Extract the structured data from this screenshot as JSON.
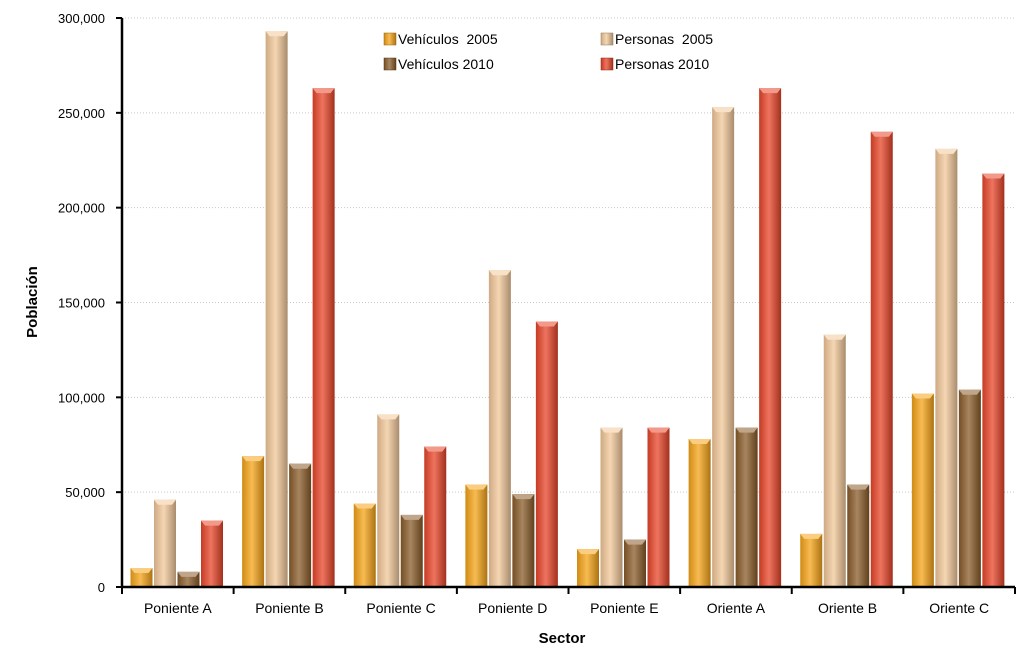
{
  "chart_data": {
    "type": "bar",
    "xlabel": "Sector",
    "ylabel": "Población",
    "ylim": [
      0,
      300000
    ],
    "yticks": [
      0,
      50000,
      100000,
      150000,
      200000,
      250000,
      300000
    ],
    "ytick_labels": [
      "0",
      "50,000",
      "100,000",
      "150,000",
      "200,000",
      "250,000",
      "300,000"
    ],
    "grid": true,
    "legend_position": "top-center",
    "categories": [
      "Poniente A",
      "Poniente B",
      "Poniente C",
      "Poniente D",
      "Poniente E",
      "Oriente A",
      "Oriente B",
      "Oriente C"
    ],
    "series": [
      {
        "name": "Vehículos  2005",
        "color": "#F5A418",
        "values": [
          10000,
          69000,
          44000,
          54000,
          20000,
          78000,
          28000,
          102000
        ]
      },
      {
        "name": "Personas  2005",
        "color": "#F2C89A",
        "values": [
          46000,
          293000,
          91000,
          167000,
          84000,
          253000,
          133000,
          231000
        ]
      },
      {
        "name": "Vehículos 2010",
        "color": "#8A5C2A",
        "values": [
          8000,
          65000,
          38000,
          49000,
          25000,
          84000,
          54000,
          104000
        ]
      },
      {
        "name": "Personas 2010",
        "color": "#E8452A",
        "values": [
          35000,
          263000,
          74000,
          140000,
          84000,
          263000,
          240000,
          218000
        ]
      }
    ]
  }
}
